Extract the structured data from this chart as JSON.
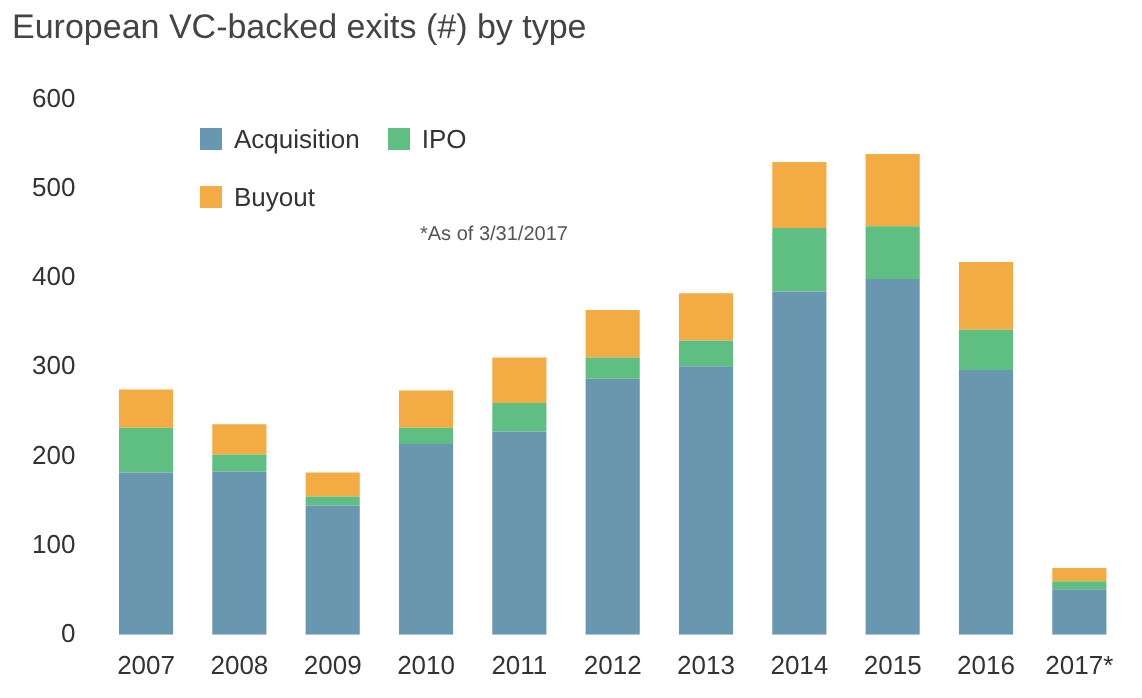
{
  "chart_data": {
    "type": "bar",
    "title": "European VC-backed exits (#) by type",
    "categories": [
      "2007",
      "2008",
      "2009",
      "2010",
      "2011",
      "2012",
      "2013",
      "2014",
      "2015",
      "2016",
      "2017*"
    ],
    "stacked": true,
    "legend": "top left",
    "grid": false,
    "ylim": [
      0,
      600
    ],
    "yticks": [
      0,
      100,
      200,
      300,
      400,
      500,
      600
    ],
    "annotations": [
      "*As of 3/31/2017"
    ],
    "series": [
      {
        "name": "Acquisition",
        "color": "#6a97b0",
        "values": [
          182,
          183,
          145,
          214,
          228,
          287,
          301,
          385,
          399,
          297,
          51
        ]
      },
      {
        "name": "IPO",
        "color": "#5fbf82",
        "values": [
          50,
          19,
          10,
          18,
          32,
          24,
          29,
          71,
          59,
          45,
          9
        ]
      },
      {
        "name": "Buyout",
        "color": "#f3ab44",
        "values": [
          43,
          34,
          27,
          42,
          51,
          53,
          53,
          74,
          81,
          76,
          15
        ]
      }
    ]
  }
}
